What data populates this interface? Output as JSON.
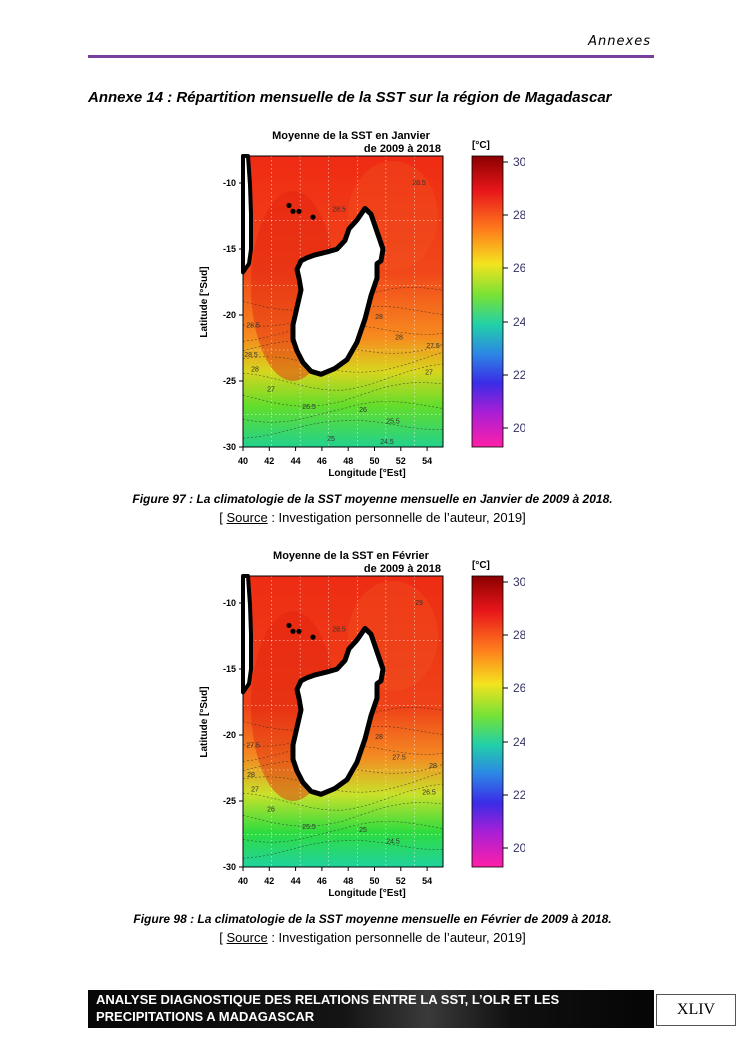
{
  "header": {
    "section": "Annexes"
  },
  "annex": {
    "title": "Annexe 14 : Répartition mensuelle de la SST sur la région de Magadascar"
  },
  "figures": [
    {
      "map_title_line1": "Moyenne de la SST en Janvier",
      "map_title_line2": "de 2009 à 2018",
      "ylabel": "Latitude [°Sud]",
      "xlabel": "Longitude [°Est]",
      "y_ticks": [
        "-10",
        "-15",
        "-20",
        "-25",
        "-30"
      ],
      "x_ticks": [
        "40",
        "42",
        "44",
        "46",
        "48",
        "50",
        "52",
        "54"
      ],
      "colorbar_unit": "[°C]",
      "colorbar_ticks": [
        "30",
        "28",
        "26",
        "24",
        "22",
        "20"
      ],
      "contour_labels": [
        "28.5",
        "28.5",
        "28",
        "28.5",
        "28",
        "27.5",
        "28.5",
        "28",
        "27",
        "27",
        "26.5",
        "26",
        "25.5",
        "25",
        "24.5"
      ],
      "caption": "Figure 97 : La climatologie de la SST moyenne mensuelle en Janvier de 2009 à 2018.",
      "source_label": "Source",
      "source_text": " : Investigation personnelle de l’auteur, 2019]"
    },
    {
      "map_title_line1": "Moyenne de la SST en Février",
      "map_title_line2": "de 2009 à 2018",
      "ylabel": "Latitude [°Sud]",
      "xlabel": "Longitude [°Est]",
      "y_ticks": [
        "-10",
        "-15",
        "-20",
        "-25",
        "-30"
      ],
      "x_ticks": [
        "40",
        "42",
        "44",
        "46",
        "48",
        "50",
        "52",
        "54"
      ],
      "colorbar_unit": "[°C]",
      "colorbar_ticks": [
        "30",
        "28",
        "26",
        "24",
        "22",
        "20"
      ],
      "contour_labels": [
        "29",
        "28.5",
        "28",
        "28",
        "27.5",
        "28",
        "27.5",
        "27",
        "26.5",
        "26",
        "25.5",
        "25",
        "24.5"
      ],
      "caption": "Figure 98 : La climatologie de la SST moyenne mensuelle en Février de 2009 à 2018.",
      "source_label": "Source",
      "source_text": " : Investigation personnelle de l’auteur, 2019]"
    }
  ],
  "footer": {
    "line1": "ANALYSE DIAGNOSTIQUE DES RELATIONS ENTRE LA SST, L’OLR ET LES",
    "line2": "PRECIPITATIONS A MADAGASCAR",
    "page": "XLIV"
  }
}
